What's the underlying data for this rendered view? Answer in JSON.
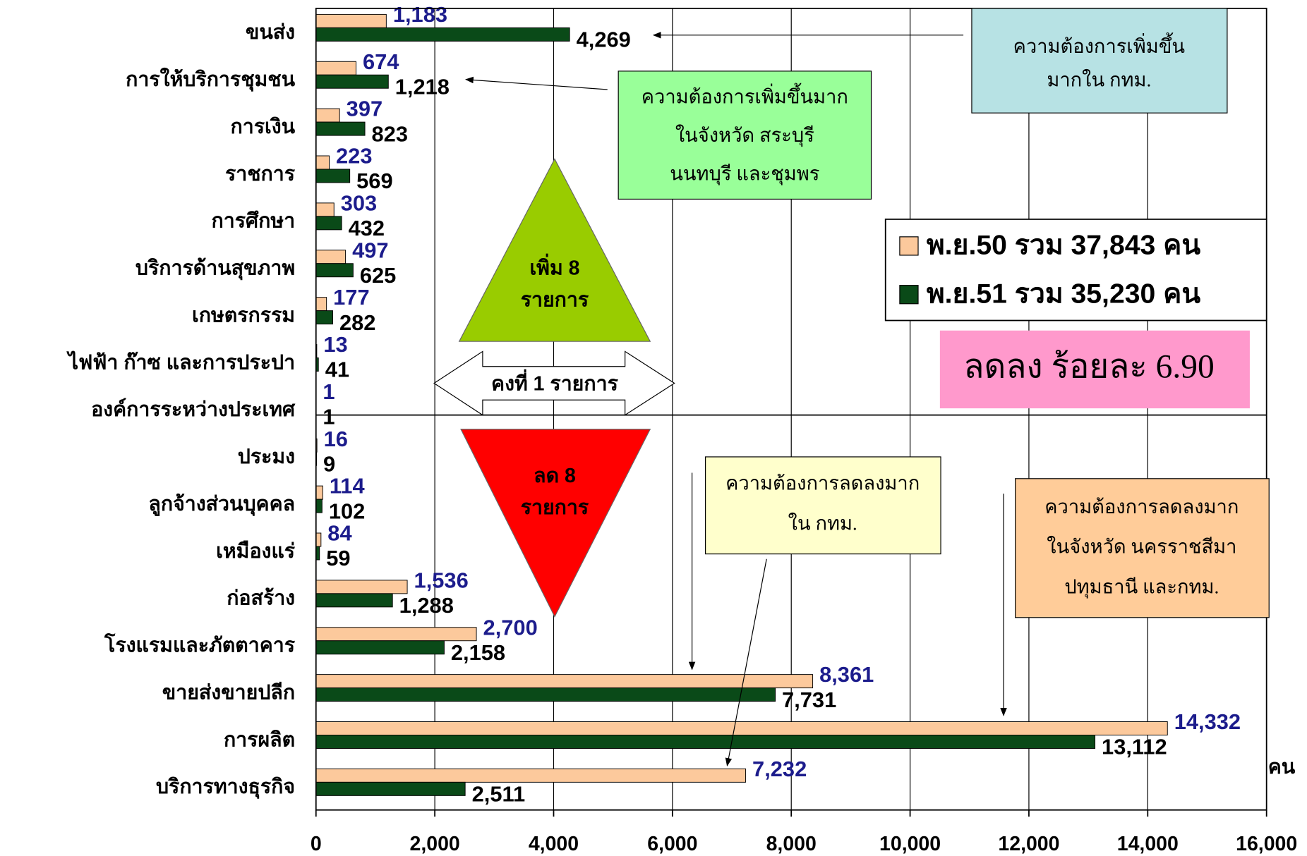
{
  "chart_data": {
    "type": "bar",
    "orientation": "horizontal",
    "x_axis_label": "คน",
    "categories": [
      "ขนส่ง",
      "การให้บริการชุมชน",
      "การเงิน",
      "ราชการ",
      "การศึกษา",
      "บริการด้านสุขภาพ",
      "เกษตรกรรม",
      "ไฟฟ้า ก๊าซ และการประปา",
      "องค์การระหว่างประเทศ",
      "ประมง",
      "ลูกจ้างส่วนบุคคล",
      "เหมืองแร่",
      "ก่อสร้าง",
      "โรงแรมและภัตตาคาร",
      "ขายส่งขายปลีก",
      "การผลิต",
      "บริการทางธุรกิจ"
    ],
    "series": [
      {
        "name": "พ.ย.50 รวม 37,843 คน",
        "color": "#fcc99c",
        "values": [
          1183,
          674,
          397,
          223,
          303,
          497,
          177,
          13,
          1,
          16,
          114,
          84,
          1536,
          2700,
          8361,
          14332,
          7232
        ],
        "value_labels": [
          "1,183",
          "674",
          "397",
          "223",
          "303",
          "497",
          "177",
          "13",
          "1",
          "16",
          "114",
          "84",
          "1,536",
          "2,700",
          "8,361",
          "14,332",
          "7,232"
        ]
      },
      {
        "name": "พ.ย.51 รวม 35,230 คน",
        "color": "#0a4a18",
        "values": [
          4269,
          1218,
          823,
          569,
          432,
          625,
          282,
          41,
          1,
          9,
          102,
          59,
          1288,
          2158,
          7731,
          13112,
          2511
        ],
        "value_labels": [
          "4,269",
          "1,218",
          "823",
          "569",
          "432",
          "625",
          "282",
          "41",
          "1",
          "9",
          "102",
          "59",
          "1,288",
          "2,158",
          "7,731",
          "13,112",
          "2,511"
        ]
      }
    ],
    "xlim": [
      0,
      16000
    ],
    "xticks": [
      0,
      {
        "value": 2000,
        "label": "2,000"
      },
      {
        "value": 4000,
        "label": "4,000"
      },
      {
        "value": 6000,
        "label": "6,000"
      },
      {
        "value": 8000,
        "label": "8,000"
      },
      {
        "value": 10000,
        "label": "10,000"
      },
      {
        "value": 12000,
        "label": "12,000"
      },
      {
        "value": 14000,
        "label": "14,000"
      },
      {
        "value": 16000,
        "label": "16,000"
      }
    ],
    "grid": true,
    "legend_position": "right",
    "annotations": {
      "increase_bkk": [
        "ความต้องการเพิ่มขึ้น",
        "มากใน กทม."
      ],
      "increase_provinces": [
        "ความต้องการเพิ่มขึ้นมาก",
        "ในจังหวัด สระบุรี",
        "นนทบุรี และชุมพร"
      ],
      "decrease_bkk": [
        "ความต้องการลดลงมาก",
        "ใน กทม."
      ],
      "decrease_provinces": [
        "ความต้องการลดลงมาก",
        "ในจังหวัด นครราชสีมา",
        "ปทุมธานี และกทม."
      ],
      "increase_count": [
        "เพิ่ม 8",
        "รายการ"
      ],
      "decrease_count": [
        "ลด 8",
        "รายการ"
      ],
      "same_count": "คงที่ 1 รายการ",
      "total_change": "ลดลง ร้อยละ 6.90"
    }
  }
}
